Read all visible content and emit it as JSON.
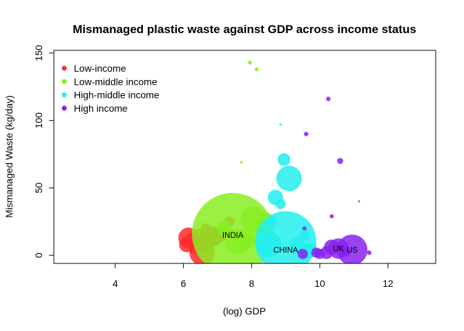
{
  "chart_data": {
    "type": "scatter",
    "title": "Mismanaged plastic waste against GDP across income status",
    "xlabel": "(log) GDP",
    "ylabel": "Mismanaged Waste (kg/day)",
    "xlim": [
      2.2,
      13.4
    ],
    "ylim": [
      -6,
      152
    ],
    "xticks": [
      "4",
      "6",
      "8",
      "10",
      "12"
    ],
    "yticks": [
      "0",
      "50",
      "100",
      "150"
    ],
    "legend_position": "top-left",
    "legend": [
      {
        "name": "Low-income",
        "color": "#FF2A2A"
      },
      {
        "name": "Low-middle income",
        "color": "#88EE22"
      },
      {
        "name": "High-middle income",
        "color": "#22EEEE"
      },
      {
        "name": "High income",
        "color": "#8822EE"
      }
    ],
    "series": [
      {
        "name": "Low-income",
        "color": "#FF2A2A",
        "points": [
          {
            "x": 6.15,
            "y": 13,
            "size": 4
          },
          {
            "x": 6.25,
            "y": 11,
            "size": 3
          },
          {
            "x": 6.1,
            "y": 8,
            "size": 3
          },
          {
            "x": 6.3,
            "y": 5,
            "size": 2
          },
          {
            "x": 6.45,
            "y": 14,
            "size": 3
          },
          {
            "x": 6.55,
            "y": 2,
            "size": 5
          },
          {
            "x": 6.6,
            "y": 9,
            "size": 3
          },
          {
            "x": 6.65,
            "y": 20,
            "size": 2
          },
          {
            "x": 6.75,
            "y": 16,
            "size": 2
          },
          {
            "x": 6.85,
            "y": 14,
            "size": 4
          },
          {
            "x": 6.95,
            "y": 12,
            "size": 2
          },
          {
            "x": 7.1,
            "y": 16,
            "size": 3
          },
          {
            "x": 7.35,
            "y": 25,
            "size": 2
          }
        ]
      },
      {
        "name": "Low-middle income",
        "color": "#88EE22",
        "points": [
          {
            "x": 7.45,
            "y": 16,
            "size": 16
          },
          {
            "x": 7.2,
            "y": 20,
            "size": 3
          },
          {
            "x": 7.6,
            "y": 10,
            "size": 5
          },
          {
            "x": 7.7,
            "y": 69,
            "size": 0.5
          },
          {
            "x": 7.95,
            "y": 143,
            "size": 0.8
          },
          {
            "x": 8.15,
            "y": 138,
            "size": 0.8
          },
          {
            "x": 8.05,
            "y": 27,
            "size": 5
          },
          {
            "x": 8.2,
            "y": 22,
            "size": 3
          },
          {
            "x": 8.35,
            "y": 20,
            "size": 4
          },
          {
            "x": 8.45,
            "y": 28,
            "size": 2
          },
          {
            "x": 7.8,
            "y": 12,
            "size": 4
          }
        ]
      },
      {
        "name": "High-middle income",
        "color": "#22EEEE",
        "points": [
          {
            "x": 9.0,
            "y": 10,
            "size": 12
          },
          {
            "x": 8.5,
            "y": 8,
            "size": 5
          },
          {
            "x": 9.1,
            "y": 57,
            "size": 5
          },
          {
            "x": 8.95,
            "y": 71,
            "size": 2.5
          },
          {
            "x": 8.7,
            "y": 43,
            "size": 3
          },
          {
            "x": 8.85,
            "y": 38,
            "size": 2
          },
          {
            "x": 8.85,
            "y": 97,
            "size": 0.5
          },
          {
            "x": 8.6,
            "y": 25,
            "size": 2
          },
          {
            "x": 9.35,
            "y": 8,
            "size": 3
          },
          {
            "x": 9.55,
            "y": 15,
            "size": 2
          },
          {
            "x": 9.75,
            "y": 5,
            "size": 2
          },
          {
            "x": 9.65,
            "y": 3,
            "size": 3
          }
        ]
      },
      {
        "name": "High income",
        "color": "#8822EE",
        "points": [
          {
            "x": 10.95,
            "y": 4,
            "size": 6
          },
          {
            "x": 10.55,
            "y": 5,
            "size": 4
          },
          {
            "x": 10.35,
            "y": 6,
            "size": 3
          },
          {
            "x": 10.2,
            "y": 2,
            "size": 2.5
          },
          {
            "x": 10.0,
            "y": 1,
            "size": 2
          },
          {
            "x": 9.9,
            "y": 2,
            "size": 2
          },
          {
            "x": 9.5,
            "y": 1,
            "size": 2
          },
          {
            "x": 10.25,
            "y": 116,
            "size": 0.9
          },
          {
            "x": 9.6,
            "y": 90,
            "size": 0.9
          },
          {
            "x": 10.6,
            "y": 70,
            "size": 1.2
          },
          {
            "x": 11.15,
            "y": 40,
            "size": 0.4
          },
          {
            "x": 10.35,
            "y": 29,
            "size": 0.8
          },
          {
            "x": 9.55,
            "y": 20,
            "size": 0.8
          },
          {
            "x": 11.45,
            "y": 2,
            "size": 0.9
          },
          {
            "x": 10.75,
            "y": 3,
            "size": 2
          }
        ]
      }
    ],
    "annotations": [
      {
        "text": "INDIA",
        "x": 7.45,
        "y": 15
      },
      {
        "text": "CHINA",
        "x": 9.0,
        "y": 4
      },
      {
        "text": "UK",
        "x": 10.55,
        "y": 5
      },
      {
        "text": "US",
        "x": 10.95,
        "y": 4
      }
    ]
  }
}
